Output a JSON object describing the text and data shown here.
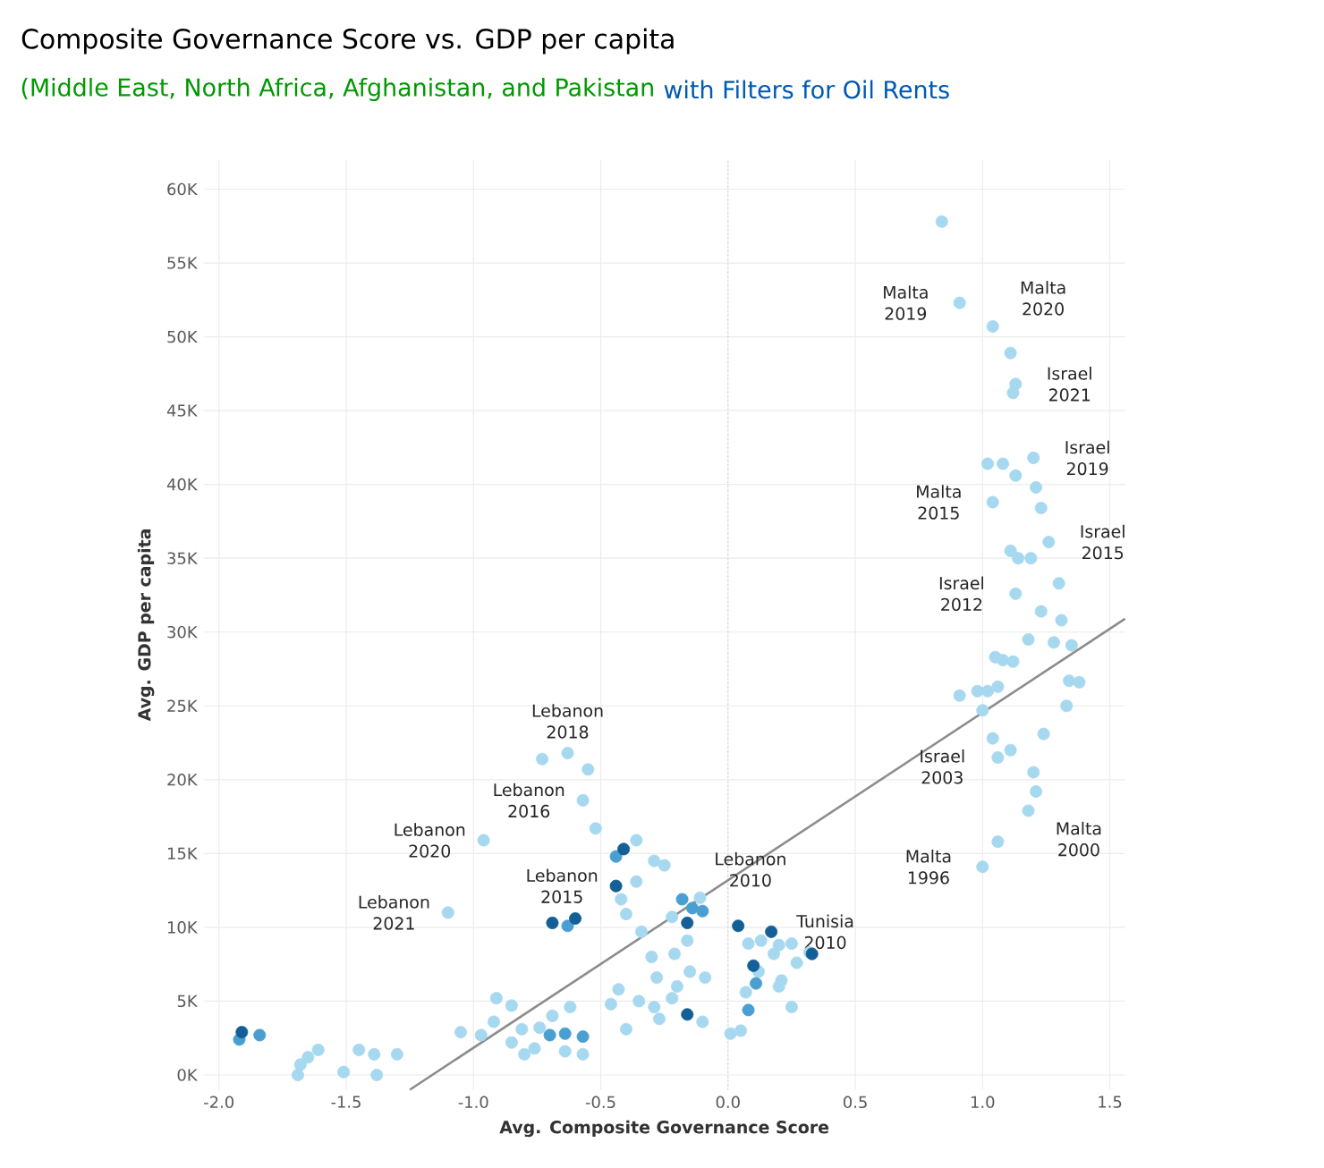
{
  "chart_data": {
    "type": "scatter",
    "title": "Composite Governance Score vs. GDP per capita",
    "subtitle": "(Middle East, North Africa, Afghanistan, and Pakistan",
    "xlabel": "Avg. Composite Governance Score",
    "ylabel": "Avg. GDP per capita",
    "xlim": [
      -2.06,
      1.56
    ],
    "ylim": [
      -1000,
      62000
    ],
    "xticks": [
      {
        "value": -2,
        "label": "-2.0"
      },
      {
        "value": -1.5,
        "label": "-1.5"
      },
      {
        "value": -1,
        "label": "-1.0"
      },
      {
        "value": -0.5,
        "label": "-0.5"
      },
      {
        "value": 0,
        "label": "0.0"
      },
      {
        "value": 0.5,
        "label": "0.5"
      },
      {
        "value": 1,
        "label": "1.0"
      },
      {
        "value": 1.5,
        "label": "1.5"
      }
    ],
    "yticks": [
      {
        "value": 0,
        "label": "0K"
      },
      {
        "value": 5000,
        "label": "5K"
      },
      {
        "value": 10000,
        "label": "10K"
      },
      {
        "value": 15000,
        "label": "15K"
      },
      {
        "value": 20000,
        "label": "20K"
      },
      {
        "value": 25000,
        "label": "25K"
      },
      {
        "value": 30000,
        "label": "30K"
      },
      {
        "value": 35000,
        "label": "35K"
      },
      {
        "value": 40000,
        "label": "40K"
      },
      {
        "value": 45000,
        "label": "45K"
      },
      {
        "value": 50000,
        "label": "50K"
      },
      {
        "value": 55000,
        "label": "55K"
      },
      {
        "value": 60000,
        "label": "60K"
      }
    ],
    "grid": true,
    "ref_lines": [
      {
        "axis": "x",
        "value": 0,
        "color": "#9a9a9a",
        "line_style": "dotted"
      }
    ],
    "series": [
      {
        "color": "#a6d8ef",
        "marker": "circle",
        "x": [
          -1.61,
          -1.68,
          -1.69,
          -1.65,
          -1.51,
          -1.45,
          -1.39,
          -1.38,
          -1.3,
          -1.1,
          -1.05,
          -0.97,
          -0.91,
          -0.92,
          -0.85,
          -0.85,
          -0.81,
          -0.8,
          -0.76,
          -0.74,
          -0.69,
          -0.62,
          -0.64,
          -0.57,
          -0.73,
          -0.63,
          -0.55,
          -0.57,
          -0.52,
          -0.96,
          -0.36,
          -0.36,
          -0.29,
          -0.25,
          -0.42,
          -0.4,
          -0.34,
          -0.11,
          -0.22,
          -0.16,
          -0.3,
          -0.21,
          -0.15,
          -0.09,
          -0.28,
          -0.2,
          -0.43,
          -0.46,
          -0.35,
          -0.29,
          -0.27,
          -0.4,
          -0.1,
          -0.22,
          0.01,
          0.05,
          0.07,
          0.12,
          0.08,
          0.13,
          0.2,
          0.25,
          0.27,
          0.21,
          0.25,
          0.2,
          0.32,
          0.18,
          0.84,
          0.91,
          1.04,
          1.11,
          1.13,
          1.12,
          1.02,
          1.08,
          1.2,
          1.13,
          1.21,
          1.04,
          1.23,
          1.26,
          1.11,
          1.14,
          1.19,
          1.3,
          1.13,
          1.23,
          1.31,
          1.18,
          1.28,
          1.35,
          1.05,
          1.08,
          1.12,
          1.34,
          1.38,
          0.91,
          0.98,
          1.02,
          1.06,
          1.0,
          1.33,
          1.04,
          1.24,
          1.06,
          1.11,
          1.2,
          1.21,
          1.18,
          1.06,
          1.0
        ],
        "values": [
          1700,
          700,
          0,
          1200,
          200,
          1700,
          1400,
          0,
          1400,
          11000,
          2900,
          2700,
          5200,
          3600,
          4700,
          2200,
          3100,
          1400,
          1800,
          3200,
          4000,
          4600,
          1600,
          1400,
          21400,
          21800,
          20700,
          18600,
          16700,
          15900,
          15900,
          13100,
          14500,
          14200,
          11900,
          10900,
          9700,
          12000,
          10700,
          9100,
          8000,
          8200,
          7000,
          6600,
          6600,
          6000,
          5800,
          4800,
          5000,
          4600,
          3800,
          3100,
          3600,
          5200,
          2800,
          3000,
          5600,
          7000,
          8900,
          9100,
          8800,
          8900,
          7600,
          6400,
          4600,
          6000,
          8300,
          8200,
          57800,
          52300,
          50700,
          48900,
          46800,
          46200,
          41400,
          41400,
          41800,
          40600,
          39800,
          38800,
          38400,
          36100,
          35500,
          35000,
          35000,
          33300,
          32600,
          31400,
          30800,
          29500,
          29300,
          29100,
          28300,
          28100,
          28000,
          26700,
          26600,
          25700,
          26000,
          26000,
          26300,
          24700,
          25000,
          22800,
          23100,
          21500,
          22000,
          20500,
          19200,
          17900,
          15800,
          14100
        ]
      },
      {
        "color": "#4a9fd2",
        "marker": "circle",
        "x": [
          -1.92,
          -1.84,
          -0.7,
          -0.64,
          -0.57,
          -0.63,
          -0.44,
          -0.18,
          -0.1,
          -0.14,
          0.11,
          0.08
        ],
        "values": [
          2400,
          2700,
          2700,
          2800,
          2600,
          10100,
          14800,
          11900,
          11100,
          11300,
          6200,
          4400
        ]
      },
      {
        "color": "#135f96",
        "marker": "circle",
        "x": [
          -1.91,
          -0.6,
          -0.69,
          -0.44,
          -0.41,
          -0.16,
          -0.16,
          0.04,
          0.17,
          0.1,
          0.33
        ],
        "values": [
          2900,
          10600,
          10300,
          12800,
          15300,
          4100,
          10300,
          10100,
          9700,
          7400,
          8200
        ]
      },
      {
        "type": "line",
        "marker": "none",
        "color": "#8c8c8c",
        "x": [
          -1.25,
          1.56
        ],
        "values": [
          -1000,
          30900
        ]
      }
    ],
    "annotations": [
      " with Filters for Oil Rents",
      {
        "text": "Malta 2019",
        "x": 0.91,
        "y": 52300
      },
      {
        "text": "Malta 2020",
        "x": 1.04,
        "y": 50700
      },
      {
        "text": "Israel 2021",
        "x": 1.13,
        "y": 46800
      },
      {
        "text": "Israel 2019",
        "x": 1.2,
        "y": 41800
      },
      {
        "text": "Malta 2015",
        "x": 1.04,
        "y": 38800
      },
      {
        "text": "Israel 2015",
        "x": 1.26,
        "y": 36100
      },
      {
        "text": "Israel 2012",
        "x": 1.13,
        "y": 32600
      },
      {
        "text": "Israel 2003",
        "x": 1.04,
        "y": 22800
      },
      {
        "text": "Malta 2000",
        "x": 1.18,
        "y": 17900
      },
      {
        "text": "Malta 1996",
        "x": 1.0,
        "y": 14100
      },
      {
        "text": "Lebanon 2018",
        "x": -0.63,
        "y": 21800
      },
      {
        "text": "Lebanon 2016",
        "x": -0.57,
        "y": 18600
      },
      {
        "text": "Lebanon 2020",
        "x": -0.96,
        "y": 15900
      },
      {
        "text": "Lebanon 2015",
        "x": -0.44,
        "y": 12800
      },
      {
        "text": "Lebanon 2021",
        "x": -1.1,
        "y": 11000
      },
      {
        "text": "Lebanon 2010",
        "x": -0.11,
        "y": 12000
      },
      {
        "text": "Tunisia 2010",
        "x": 0.17,
        "y": 9700
      }
    ]
  }
}
